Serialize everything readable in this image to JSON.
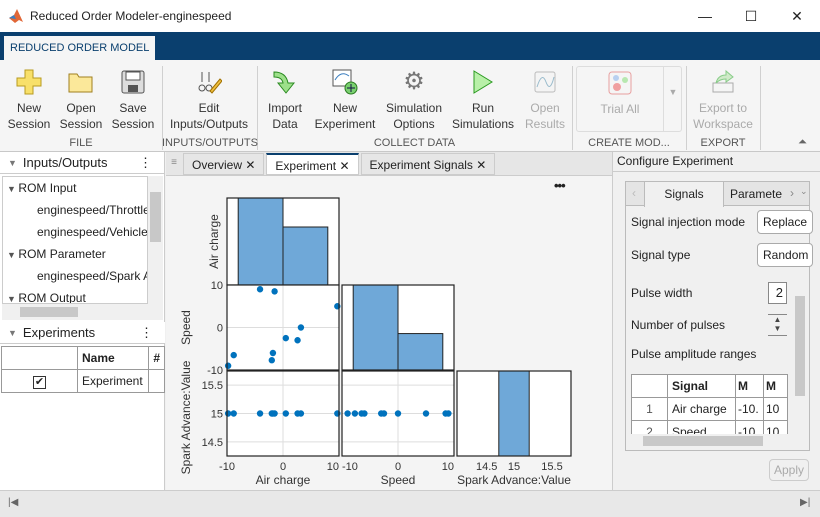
{
  "window": {
    "title": "Reduced Order Modeler-enginespeed",
    "minimize": "—",
    "maximize": "☐",
    "close": "✕"
  },
  "ribbon": {
    "tab": "REDUCED ORDER MODEL",
    "buttons": [
      {
        "id": "new-session",
        "label1": "New",
        "label2": "Session",
        "icon": "plus-icon",
        "enabled": true
      },
      {
        "id": "open-session",
        "label1": "Open",
        "label2": "Session",
        "icon": "folder-icon",
        "enabled": true
      },
      {
        "id": "save-session",
        "label1": "Save",
        "label2": "Session",
        "icon": "floppy-icon",
        "enabled": true
      },
      {
        "id": "edit-io",
        "label1": "Edit",
        "label2": "Inputs/Outputs",
        "icon": "edit-io-icon",
        "enabled": true
      },
      {
        "id": "import-data",
        "label1": "Import",
        "label2": "Data",
        "icon": "import-arrow-icon",
        "enabled": true
      },
      {
        "id": "new-experiment",
        "label1": "New",
        "label2": "Experiment",
        "icon": "new-experiment-icon",
        "enabled": true
      },
      {
        "id": "simulation-options",
        "label1": "Simulation",
        "label2": "Options",
        "icon": "gear-icon",
        "enabled": true
      },
      {
        "id": "run-simulations",
        "label1": "Run",
        "label2": "Simulations",
        "icon": "play-icon",
        "enabled": true
      },
      {
        "id": "open-results",
        "label1": "Open",
        "label2": "Results",
        "icon": "results-icon",
        "enabled": false
      },
      {
        "id": "trial-all",
        "label1": "Trial All",
        "label2": "",
        "icon": "network-icon",
        "enabled": false
      },
      {
        "id": "export-workspace",
        "label1": "Export to",
        "label2": "Workspace",
        "icon": "export-icon",
        "enabled": false
      }
    ],
    "sections": [
      "FILE",
      "INPUTS/OUTPUTS",
      "COLLECT DATA",
      "CREATE MOD...",
      "EXPORT"
    ]
  },
  "inputs_outputs": {
    "title": "Inputs/Outputs",
    "tree": [
      {
        "label": "ROM Input",
        "group": true
      },
      {
        "label": "enginespeed/Throttle",
        "group": false
      },
      {
        "label": "enginespeed/Vehicle",
        "group": false
      },
      {
        "label": "ROM Parameter",
        "group": true
      },
      {
        "label": "enginespeed/Spark Advance",
        "group": false
      },
      {
        "label": "ROM Output",
        "group": true
      }
    ]
  },
  "experiments": {
    "title": "Experiments",
    "columns": [
      "",
      "Name",
      "#"
    ],
    "rows": [
      {
        "checked": true,
        "name": "Experiment"
      }
    ]
  },
  "doc_tabs": [
    {
      "label": "Overview",
      "active": false
    },
    {
      "label": "Experiment",
      "active": true
    },
    {
      "label": "Experiment Signals",
      "active": false
    }
  ],
  "more_menu": "•••",
  "chart_data": {
    "type": "scatter-matrix",
    "variables": [
      "Air charge",
      "Speed",
      "Spark Advance:Value"
    ],
    "points": {
      "Air charge": [
        -9.8,
        -8.8,
        -4.1,
        -1.5,
        -1.8,
        -2.0,
        0.5,
        2.6,
        3.2,
        9.7
      ],
      "Speed": [
        -9,
        -6.5,
        9,
        8.5,
        -6,
        -7.7,
        -2.5,
        -3,
        0,
        5
      ],
      "Spark Advance:Value": [
        15,
        15,
        15,
        15,
        15,
        15,
        15,
        15,
        15,
        15
      ]
    },
    "histograms": [
      {
        "variable": "Air charge",
        "edges": [
          -8,
          0,
          8
        ],
        "counts": [
          6,
          4
        ]
      },
      {
        "variable": "Speed",
        "edges": [
          -8,
          0,
          8
        ],
        "counts": [
          7,
          3
        ]
      },
      {
        "variable": "Spark Advance:Value",
        "edges": [
          14.8,
          15.2
        ],
        "counts": [
          10
        ]
      }
    ],
    "ranges": {
      "Air charge": [
        -10,
        10
      ],
      "Speed": [
        -10,
        10
      ],
      "Spark Advance:Value": [
        14.25,
        15.75
      ]
    },
    "ticks": {
      "Air charge": [
        "-10",
        "0",
        "10"
      ],
      "Speed": [
        "-10",
        "0",
        "10"
      ],
      "Spark Advance:Value": [
        "14.5",
        "15",
        "15.5"
      ]
    },
    "grid": true,
    "color": "#0072bd",
    "bar_color": "#6fa8d8"
  },
  "configure": {
    "title": "Configure Experiment",
    "tabs": [
      "Signals",
      "Paramete"
    ],
    "signal_injection_label": "Signal injection mode",
    "signal_injection_value": "Replace",
    "signal_type_label": "Signal type",
    "signal_type_value": "Random",
    "pulse_width_label": "Pulse width",
    "pulse_width_value": "2",
    "num_pulses_label": "Number of pulses",
    "pulse_ranges_label": "Pulse amplitude ranges",
    "table": {
      "columns": [
        "",
        "Signal",
        "M",
        "M"
      ],
      "rows": [
        [
          "1",
          "Air charge",
          "-10.",
          "10"
        ],
        [
          "2",
          "Speed",
          "-10",
          "10"
        ]
      ]
    },
    "apply": "Apply"
  }
}
